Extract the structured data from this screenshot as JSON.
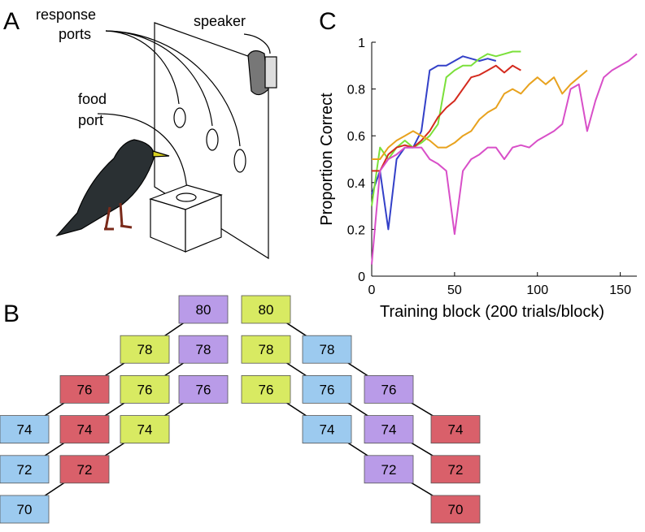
{
  "panel_labels": [
    "A",
    "B",
    "C"
  ],
  "illustration": {
    "response_ports": [
      "response",
      "ports"
    ],
    "speaker": "speaker",
    "food_port": [
      "food",
      "port"
    ]
  },
  "diagram": {
    "groups": [
      {
        "columns": [
          {
            "color": "#9ccaef",
            "values": [
              70,
              72,
              74
            ]
          },
          {
            "color": "#d9606a",
            "values": [
              72,
              74,
              76
            ]
          },
          {
            "color": "#d8ea62",
            "values": [
              74,
              76,
              78
            ]
          },
          {
            "color": "#b99be8",
            "values": [
              76,
              78,
              80
            ]
          }
        ]
      },
      {
        "columns": [
          {
            "color": "#d8ea62",
            "values": [
              80,
              78,
              76
            ]
          },
          {
            "color": "#9ccaef",
            "values": [
              78,
              76,
              74
            ]
          },
          {
            "color": "#b99be8",
            "values": [
              76,
              74,
              72
            ]
          },
          {
            "color": "#d9606a",
            "values": [
              74,
              72,
              70
            ]
          }
        ]
      }
    ]
  },
  "chart_data": {
    "type": "line",
    "xlabel": "Training block (200 trials/block)",
    "ylabel": "Proportion Correct",
    "xlim": [
      0,
      160
    ],
    "ylim": [
      0,
      1
    ],
    "xticks": [
      0,
      50,
      100,
      150
    ],
    "yticks": [
      0,
      0.2,
      0.4,
      0.6,
      0.8,
      1
    ],
    "x": [
      0,
      5,
      10,
      15,
      20,
      25,
      30,
      35,
      40,
      45,
      50,
      55,
      60,
      65,
      70,
      75,
      80,
      85,
      90,
      95,
      100,
      105,
      110,
      115,
      120,
      125,
      130,
      135,
      140,
      145,
      150,
      155,
      160
    ],
    "series": [
      {
        "color": "#3340c8",
        "values": [
          0.35,
          0.45,
          0.2,
          0.5,
          0.55,
          0.55,
          0.62,
          0.88,
          0.9,
          0.9,
          0.92,
          0.94,
          0.93,
          0.92,
          0.93,
          0.92,
          null,
          null,
          null,
          null,
          null,
          null,
          null,
          null,
          null,
          null,
          null,
          null,
          null,
          null,
          null,
          null,
          null
        ]
      },
      {
        "color": "#7be03a",
        "values": [
          0.3,
          0.55,
          0.5,
          0.55,
          0.58,
          0.55,
          0.57,
          0.6,
          0.65,
          0.85,
          0.88,
          0.9,
          0.9,
          0.93,
          0.95,
          0.94,
          0.95,
          0.96,
          0.96,
          null,
          null,
          null,
          null,
          null,
          null,
          null,
          null,
          null,
          null,
          null,
          null,
          null,
          null
        ]
      },
      {
        "color": "#d42a1e",
        "values": [
          0.45,
          0.45,
          0.52,
          0.55,
          0.56,
          0.55,
          0.58,
          0.62,
          0.68,
          0.72,
          0.75,
          0.8,
          0.85,
          0.86,
          0.88,
          0.9,
          0.87,
          0.9,
          0.88,
          null,
          null,
          null,
          null,
          null,
          null,
          null,
          null,
          null,
          null,
          null,
          null,
          null,
          null
        ]
      },
      {
        "color": "#e8a21e",
        "values": [
          0.5,
          0.5,
          0.55,
          0.58,
          0.6,
          0.62,
          0.6,
          0.58,
          0.55,
          0.55,
          0.57,
          0.6,
          0.62,
          0.67,
          0.7,
          0.72,
          0.78,
          0.8,
          0.78,
          0.82,
          0.85,
          0.82,
          0.85,
          0.78,
          0.82,
          0.85,
          0.88,
          null,
          null,
          null,
          null,
          null,
          null
        ]
      },
      {
        "color": "#d84fc8",
        "values": [
          0.05,
          0.45,
          0.5,
          0.52,
          0.55,
          0.55,
          0.55,
          0.5,
          0.48,
          0.45,
          0.18,
          0.45,
          0.5,
          0.52,
          0.55,
          0.55,
          0.5,
          0.55,
          0.56,
          0.55,
          0.58,
          0.6,
          0.62,
          0.65,
          0.8,
          0.82,
          0.62,
          0.75,
          0.85,
          0.88,
          0.9,
          0.92,
          0.95
        ]
      }
    ]
  }
}
